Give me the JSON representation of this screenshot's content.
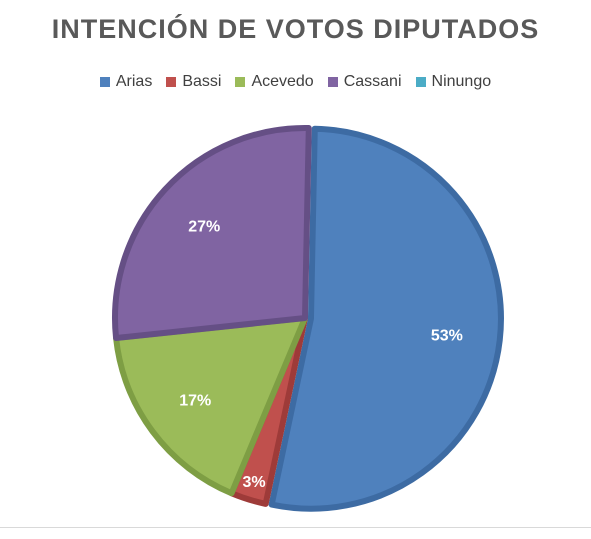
{
  "chart_data": {
    "type": "pie",
    "title": "INTENCIÓN DE VOTOS DIPUTADOS",
    "legend_position": "top",
    "slices": [
      {
        "name": "Arias",
        "value": 53,
        "label": "53%",
        "color": "#4F81BD",
        "edge": "#3D6BA3"
      },
      {
        "name": "Bassi",
        "value": 3,
        "label": "3%",
        "color": "#C0504D",
        "edge": "#9E3B39"
      },
      {
        "name": "Acevedo",
        "value": 17,
        "label": "17%",
        "color": "#9BBB59",
        "edge": "#7E9E44"
      },
      {
        "name": "Cassani",
        "value": 27,
        "label": "27%",
        "color": "#8064A2",
        "edge": "#654F85"
      },
      {
        "name": "Ninungo",
        "value": 0,
        "label": "",
        "color": "#4BACC6",
        "edge": "#3A8DA4"
      }
    ]
  }
}
